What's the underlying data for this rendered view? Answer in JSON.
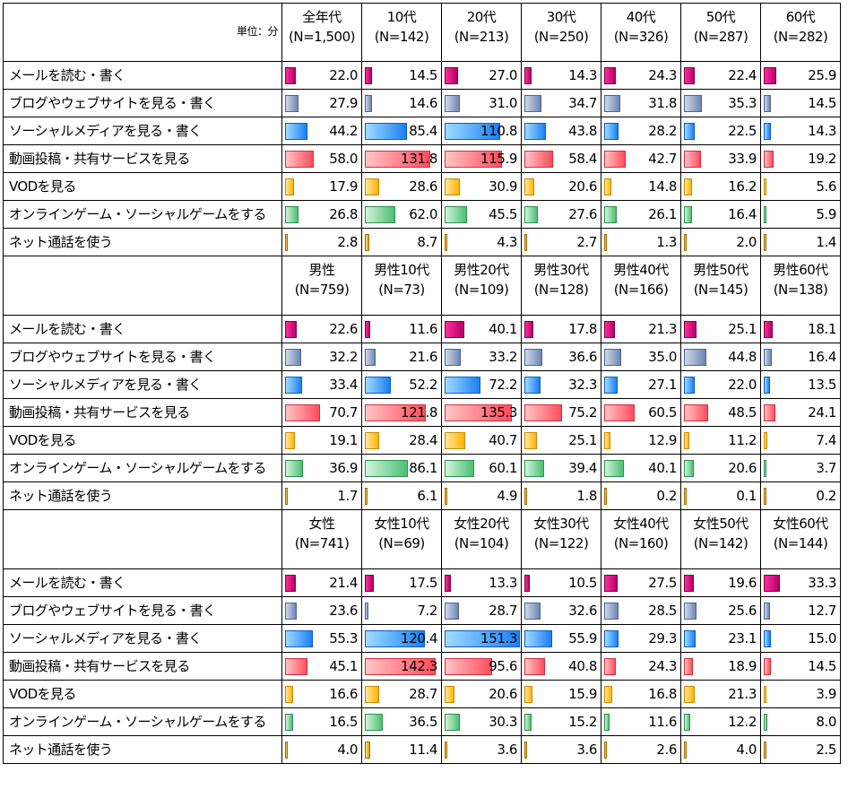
{
  "unit_label": "単位：分",
  "categories": [
    "メールを読む・書く",
    "ブログやウェブサイトを見る・書く",
    "ソーシャルメディアを見る・書く",
    "動画投稿・共有サービスを見る",
    "VODを見る",
    "オンラインゲーム・ソーシャルゲームをする",
    "ネット通話を使う"
  ],
  "colors": {
    "mail": "#d4147a",
    "blog": "#8fa3c8",
    "social": "#2e8ff0",
    "video": "#ff6b78",
    "vod": "#ffc43a",
    "game": "#6fcf8f",
    "voip": "#e0a020"
  },
  "chart_data": {
    "type": "table",
    "sections": [
      {
        "columns": [
          {
            "label": "全年代",
            "n": "(N=1,500)"
          },
          {
            "label": "10代",
            "n": "(N=142)"
          },
          {
            "label": "20代",
            "n": "(N=213)"
          },
          {
            "label": "30代",
            "n": "(N=250)"
          },
          {
            "label": "40代",
            "n": "(N=326)"
          },
          {
            "label": "50代",
            "n": "(N=287)"
          },
          {
            "label": "60代",
            "n": "(N=282)"
          }
        ],
        "rows": [
          [
            "22.0",
            "14.5",
            "27.0",
            "14.3",
            "24.3",
            "22.4",
            "25.9"
          ],
          [
            "27.9",
            "14.6",
            "31.0",
            "34.7",
            "31.8",
            "35.3",
            "14.5"
          ],
          [
            "44.2",
            "85.4",
            "110.8",
            "43.8",
            "28.2",
            "22.5",
            "14.3"
          ],
          [
            "58.0",
            "131.8",
            "115.9",
            "58.4",
            "42.7",
            "33.9",
            "19.2"
          ],
          [
            "17.9",
            "28.6",
            "30.9",
            "20.6",
            "14.8",
            "16.2",
            "5.6"
          ],
          [
            "26.8",
            "62.0",
            "45.5",
            "27.6",
            "26.1",
            "16.4",
            "5.9"
          ],
          [
            "2.8",
            "8.7",
            "4.3",
            "2.7",
            "1.3",
            "2.0",
            "1.4"
          ]
        ]
      },
      {
        "columns": [
          {
            "label": "男性",
            "n": "(N=759)"
          },
          {
            "label": "男性10代",
            "n": "(N=73)"
          },
          {
            "label": "男性20代",
            "n": "(N=109)"
          },
          {
            "label": "男性30代",
            "n": "(N=128)"
          },
          {
            "label": "男性40代",
            "n": "(N=166)"
          },
          {
            "label": "男性50代",
            "n": "(N=145)"
          },
          {
            "label": "男性60代",
            "n": "(N=138)"
          }
        ],
        "rows": [
          [
            "22.6",
            "11.6",
            "40.1",
            "17.8",
            "21.3",
            "25.1",
            "18.1"
          ],
          [
            "32.2",
            "21.6",
            "33.2",
            "36.6",
            "35.0",
            "44.8",
            "16.4"
          ],
          [
            "33.4",
            "52.2",
            "72.2",
            "32.3",
            "27.1",
            "22.0",
            "13.5"
          ],
          [
            "70.7",
            "121.8",
            "135.3",
            "75.2",
            "60.5",
            "48.5",
            "24.1"
          ],
          [
            "19.1",
            "28.4",
            "40.7",
            "25.1",
            "12.9",
            "11.2",
            "7.4"
          ],
          [
            "36.9",
            "86.1",
            "60.1",
            "39.4",
            "40.1",
            "20.6",
            "3.7"
          ],
          [
            "1.7",
            "6.1",
            "4.9",
            "1.8",
            "0.2",
            "0.1",
            "0.2"
          ]
        ]
      },
      {
        "columns": [
          {
            "label": "女性",
            "n": "(N=741)"
          },
          {
            "label": "女性10代",
            "n": "(N=69)"
          },
          {
            "label": "女性20代",
            "n": "(N=104)"
          },
          {
            "label": "女性30代",
            "n": "(N=122)"
          },
          {
            "label": "女性40代",
            "n": "(N=160)"
          },
          {
            "label": "女性50代",
            "n": "(N=142)"
          },
          {
            "label": "女性60代",
            "n": "(N=144)"
          }
        ],
        "rows": [
          [
            "21.4",
            "17.5",
            "13.3",
            "10.5",
            "27.5",
            "19.6",
            "33.3"
          ],
          [
            "23.6",
            "7.2",
            "28.7",
            "32.6",
            "28.5",
            "25.6",
            "12.7"
          ],
          [
            "55.3",
            "120.4",
            "151.3",
            "55.9",
            "29.3",
            "23.1",
            "15.0"
          ],
          [
            "45.1",
            "142.3",
            "95.6",
            "40.8",
            "24.3",
            "18.9",
            "14.5"
          ],
          [
            "16.6",
            "28.7",
            "20.6",
            "15.9",
            "16.8",
            "21.3",
            "3.9"
          ],
          [
            "16.5",
            "36.5",
            "30.3",
            "15.2",
            "11.6",
            "12.2",
            "8.0"
          ],
          [
            "4.0",
            "11.4",
            "3.6",
            "3.6",
            "2.6",
            "4.0",
            "2.5"
          ]
        ]
      }
    ]
  }
}
